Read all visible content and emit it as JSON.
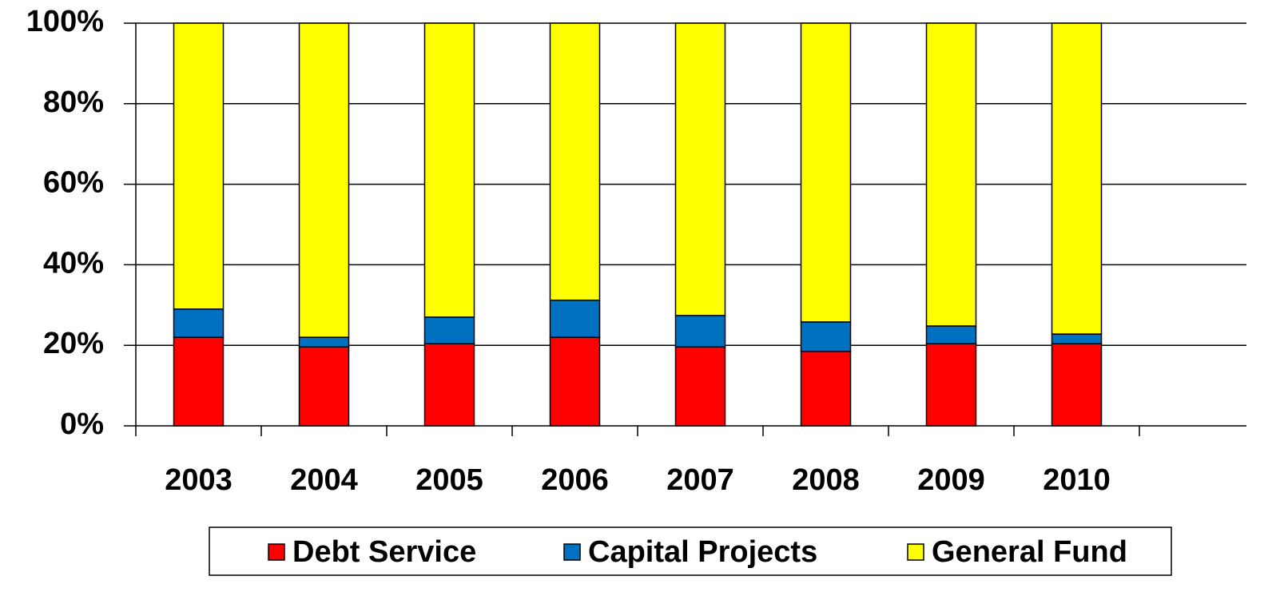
{
  "chart_data": {
    "type": "stacked_bar",
    "categories": [
      "2003",
      "2004",
      "2005",
      "2006",
      "2007",
      "2008",
      "2009",
      "2010"
    ],
    "series": [
      {
        "name": "Debt Service",
        "color": "#ff0000",
        "values": [
          22.0,
          19.6,
          20.4,
          22.0,
          19.6,
          18.5,
          20.4,
          20.4
        ]
      },
      {
        "name": "Capital Projects",
        "color": "#0070c0",
        "values": [
          7.0,
          2.4,
          6.6,
          9.2,
          7.8,
          7.3,
          4.4,
          2.4
        ]
      },
      {
        "name": "General Fund",
        "color": "#ffff00",
        "values": [
          71.0,
          78.0,
          73.0,
          68.8,
          72.6,
          74.2,
          75.2,
          77.2
        ]
      }
    ],
    "ylim": [
      0,
      100
    ],
    "yticks": [
      {
        "value": 0,
        "label": "0%"
      },
      {
        "value": 20,
        "label": "20%"
      },
      {
        "value": 40,
        "label": "40%"
      },
      {
        "value": 60,
        "label": "60%"
      },
      {
        "value": 80,
        "label": "80%"
      },
      {
        "value": 100,
        "label": "100%"
      }
    ],
    "grid": true,
    "legend": "bottom"
  }
}
